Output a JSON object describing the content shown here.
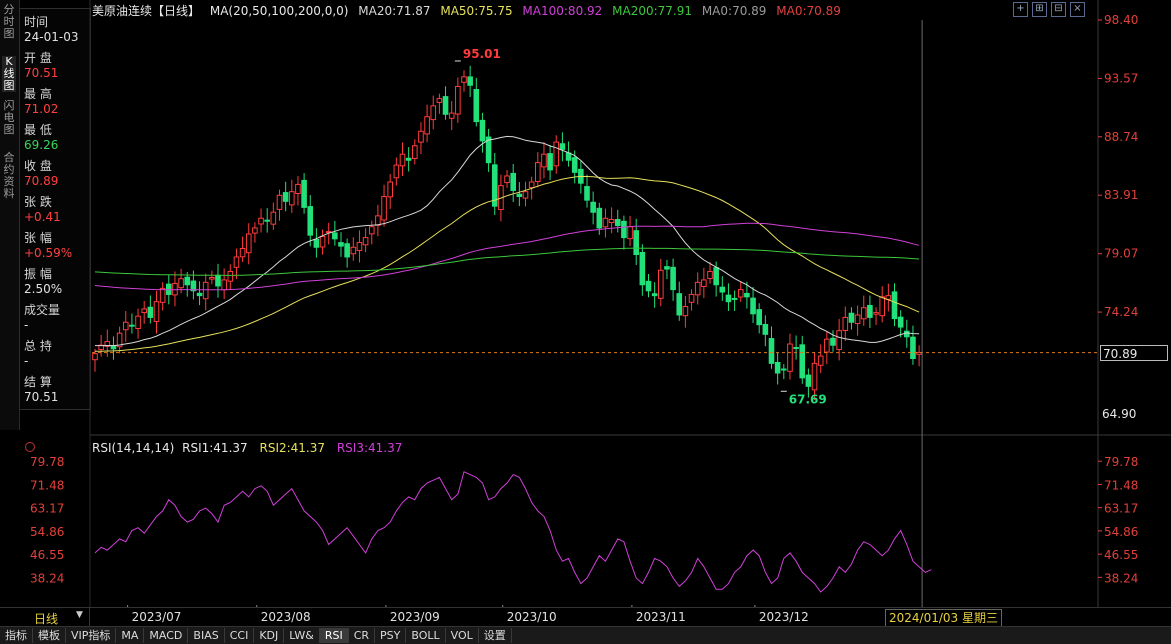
{
  "left_tabs": [
    {
      "label": "分时图"
    },
    {
      "label": "K线图"
    },
    {
      "label": "闪电图"
    },
    {
      "label": "合约资料"
    }
  ],
  "info": [
    {
      "label": "时间",
      "value": "24-01-03",
      "color": "#e0e0e0"
    },
    {
      "label": "开 盘",
      "value": "70.51",
      "color": "#ff4040"
    },
    {
      "label": "最 高",
      "value": "71.02",
      "color": "#ff4040"
    },
    {
      "label": "最 低",
      "value": "69.26",
      "color": "#3ad65a"
    },
    {
      "label": "收 盘",
      "value": "70.89",
      "color": "#ff4040"
    },
    {
      "label": "张 跌",
      "value": "+0.41",
      "color": "#ff4040"
    },
    {
      "label": "张 幅",
      "value": "+0.59%",
      "color": "#ff4040"
    },
    {
      "label": "振 幅",
      "value": "2.50%",
      "color": "#e0e0e0"
    },
    {
      "label": "成交量",
      "value": "-",
      "color": "#e0e0e0"
    },
    {
      "label": "总 持",
      "value": "-",
      "color": "#e0e0e0"
    },
    {
      "label": "结 算",
      "value": "70.51",
      "color": "#e0e0e0"
    }
  ],
  "header": {
    "title": "美原油连续【日线】",
    "ma_label": "MA(20,50,100,200,0,0)",
    "ma20": "MA20:71.87",
    "ma50": "MA50:75.75",
    "ma100": "MA100:80.92",
    "ma200": "MA200:77.91",
    "ma0a": "MA0:70.89",
    "ma0b": "MA0:70.89"
  },
  "rsi_header": {
    "label": "RSI(14,14,14)",
    "rsi1": "RSI1:41.37",
    "rsi2": "RSI2:41.37",
    "rsi3": "RSI3:41.37"
  },
  "annotations": {
    "high": "95.01",
    "low": "67.69"
  },
  "current_price": "70.89",
  "low_axis_label": "64.90",
  "bottom": {
    "period": "日线",
    "cursor_date": "2024/01/03 星期三"
  },
  "toolbar": [
    {
      "label": "指标",
      "active": false
    },
    {
      "label": "模板",
      "active": false
    },
    {
      "label": "VIP指标",
      "active": false
    },
    {
      "label": "MA",
      "active": false
    },
    {
      "label": "MACD",
      "active": false
    },
    {
      "label": "BIAS",
      "active": false
    },
    {
      "label": "CCI",
      "active": false
    },
    {
      "label": "KDJ",
      "active": false
    },
    {
      "label": "LW&",
      "active": false
    },
    {
      "label": "RSI",
      "active": true
    },
    {
      "label": "CR",
      "active": false
    },
    {
      "label": "PSY",
      "active": false
    },
    {
      "label": "BOLL",
      "active": false
    },
    {
      "label": "VOL",
      "active": false
    },
    {
      "label": "设置",
      "active": false
    }
  ],
  "colors": {
    "up": "#ff3b3b",
    "down": "#22e07a",
    "ma20": "#d8d8d8",
    "ma50": "#e6e05a",
    "ma100": "#d040d8",
    "ma200": "#3cc83c",
    "rsi": "#d040d8",
    "axis": "#e0403a",
    "grid": "#3a0000"
  },
  "chart_data": [
    {
      "type": "candlestick",
      "title": "美原油连续【日线】",
      "y_ticks": [
        98.4,
        93.57,
        88.74,
        83.91,
        79.07,
        74.24
      ],
      "ylim": [
        64.9,
        98.4
      ],
      "x_tick_labels": [
        "2023/07",
        "2023/08",
        "2023/09",
        "2023/10",
        "2023/11",
        "2023/12"
      ],
      "x_tick_index": [
        4,
        25,
        46,
        65,
        86,
        106
      ],
      "high_marker": {
        "index": 59,
        "value": 95.01
      },
      "low_marker": {
        "index": 112,
        "value": 67.69
      },
      "closes": [
        70.8,
        71.5,
        71.8,
        71.2,
        72.5,
        73.4,
        73.1,
        73.9,
        74.5,
        73.8,
        75.1,
        76.2,
        75.7,
        76.6,
        77.0,
        76.5,
        76.0,
        75.6,
        76.7,
        77.1,
        76.4,
        76.9,
        77.6,
        78.8,
        79.5,
        80.7,
        81.2,
        82.0,
        81.8,
        82.5,
        83.9,
        83.4,
        84.2,
        84.8,
        82.9,
        80.6,
        79.6,
        80.5,
        80.9,
        80.3,
        79.7,
        78.8,
        79.6,
        80.0,
        80.4,
        81.3,
        82.2,
        83.8,
        85.0,
        86.4,
        87.3,
        86.8,
        88.0,
        89.2,
        90.4,
        91.3,
        91.9,
        90.6,
        90.7,
        92.9,
        93.7,
        93.0,
        90.0,
        88.4,
        86.6,
        83.0,
        84.7,
        85.5,
        84.3,
        83.8,
        84.2,
        85.0,
        86.6,
        87.3,
        86.0,
        88.3,
        87.7,
        86.8,
        85.8,
        84.9,
        83.5,
        82.5,
        81.2,
        82.0,
        81.9,
        81.4,
        80.4,
        81.3,
        79.0,
        76.5,
        76.0,
        75.6,
        77.7,
        77.8,
        76.1,
        74.0,
        74.7,
        75.7,
        76.7,
        76.9,
        77.6,
        76.5,
        75.9,
        75.1,
        75.3,
        76.1,
        75.5,
        74.1,
        73.2,
        72.4,
        70.0,
        69.2,
        69.5,
        71.6,
        71.3,
        68.8,
        68.1,
        70.0,
        70.6,
        72.0,
        71.5,
        72.7,
        73.8,
        73.4,
        74.0,
        74.6,
        73.8,
        74.2,
        75.5,
        75.6,
        73.7,
        73.0,
        72.2,
        70.4,
        70.9
      ],
      "series": [
        {
          "name": "MA20",
          "values": []
        },
        {
          "name": "MA50",
          "values": []
        },
        {
          "name": "MA100",
          "values": []
        },
        {
          "name": "MA200",
          "values": []
        }
      ]
    },
    {
      "type": "line",
      "title": "RSI(14,14,14)",
      "y_ticks": [
        79.78,
        71.48,
        63.17,
        54.86,
        46.55,
        38.24
      ],
      "ylim": [
        33,
        82
      ],
      "series": [
        {
          "name": "RSI1",
          "values": [
            47,
            49,
            48,
            50,
            52,
            51,
            55,
            56,
            54,
            57,
            60,
            62,
            66,
            64,
            60,
            58,
            59,
            62,
            63,
            61,
            58,
            64,
            65,
            67,
            69,
            67,
            70,
            71,
            69,
            64,
            66,
            68,
            70,
            66,
            62,
            60,
            58,
            55,
            50,
            52,
            54,
            56,
            53,
            50,
            47,
            52,
            55,
            56,
            58,
            62,
            65,
            67,
            66,
            70,
            72,
            73,
            74,
            70,
            66,
            68,
            76,
            75,
            74,
            72,
            66,
            67,
            70,
            72,
            75,
            74,
            70,
            65,
            62,
            60,
            55,
            48,
            44,
            45,
            40,
            36,
            38,
            42,
            46,
            44,
            48,
            52,
            51,
            44,
            38,
            36,
            40,
            45,
            44,
            42,
            38,
            35,
            37,
            40,
            45,
            42,
            38,
            34,
            34,
            36,
            40,
            42,
            46,
            48,
            46,
            40,
            36,
            38,
            45,
            47,
            44,
            40,
            38,
            36,
            33,
            35,
            38,
            42,
            40,
            43,
            48,
            51,
            50,
            48,
            46,
            48,
            52,
            55,
            50,
            44,
            42,
            40,
            41
          ]
        }
      ]
    }
  ]
}
